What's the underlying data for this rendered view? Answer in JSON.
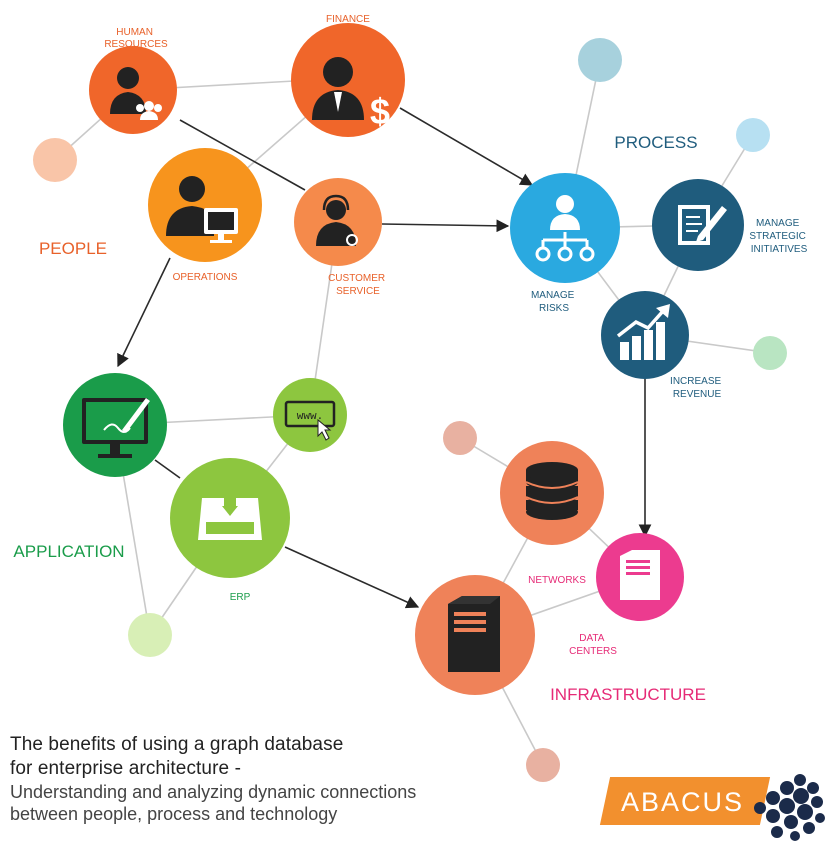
{
  "groups": {
    "people": "PEOPLE",
    "process": "PROCESS",
    "application": "APPLICATION",
    "infrastructure": "INFRASTRUCTURE"
  },
  "nodes": {
    "human_resources": [
      "HUMAN",
      "RESOURCES"
    ],
    "finance": [
      "FINANCE"
    ],
    "operations": [
      "OPERATIONS"
    ],
    "customer_service": [
      "CUSTOMER",
      "SERVICE"
    ],
    "manage_risks": [
      "MANAGE",
      "RISKS"
    ],
    "manage_strategic": [
      "MANAGE",
      "STRATEGIC",
      "INITIATIVES"
    ],
    "increase_revenue": [
      "INCREASE",
      "REVENUE"
    ],
    "erp": [
      "ERP"
    ],
    "networks": [
      "NETWORKS"
    ],
    "data_centers": [
      "DATA",
      "CENTERS"
    ]
  },
  "icons": {
    "www_text": "www."
  },
  "colors": {
    "people": "#f0662a",
    "operations": "#f7941d",
    "process": "#2aa9e0",
    "process_dark": "#1f5c7d",
    "application": "#1a9c4a",
    "application_light": "#8dc63f",
    "infrastructure": "#ef8259",
    "infrastructure_pink": "#ec3b8f"
  },
  "footer": {
    "line1": "The benefits of using a graph database",
    "line2": "for enterprise architecture -",
    "line3": "Understanding and analyzing dynamic connections",
    "line4": "between people, process and technology"
  },
  "logo": {
    "name": "ABACUS"
  }
}
